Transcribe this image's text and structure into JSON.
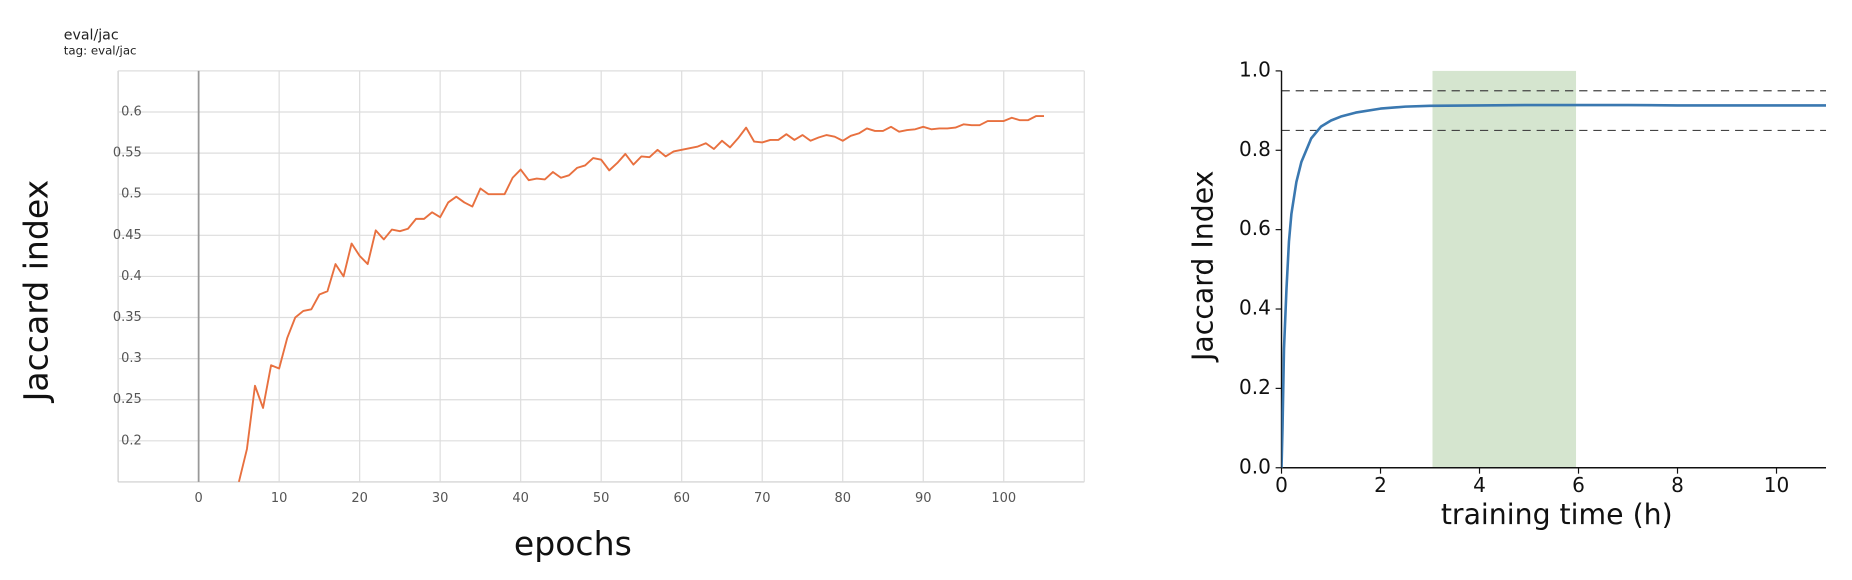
{
  "chart_data": [
    {
      "type": "line",
      "title": "eval/jac",
      "subtitle": "tag: eval/jac",
      "x_label": "epochs",
      "y_label": "Jaccard index",
      "x": [
        5,
        6,
        7,
        8,
        9,
        10,
        11,
        12,
        13,
        14,
        15,
        16,
        17,
        18,
        19,
        20,
        21,
        22,
        23,
        24,
        25,
        26,
        27,
        28,
        29,
        30,
        31,
        32,
        33,
        34,
        35,
        36,
        37,
        38,
        39,
        40,
        41,
        42,
        43,
        44,
        45,
        46,
        47,
        48,
        49,
        50,
        51,
        52,
        53,
        54,
        55,
        56,
        57,
        58,
        59,
        60,
        61,
        62,
        63,
        64,
        65,
        66,
        67,
        68,
        69,
        70,
        71,
        72,
        73,
        74,
        75,
        76,
        77,
        78,
        79,
        80,
        81,
        82,
        83,
        84,
        85,
        86,
        87,
        88,
        89,
        90,
        91,
        92,
        93,
        94,
        95,
        96,
        97,
        98,
        99,
        100,
        101,
        102,
        103,
        104,
        105
      ],
      "series": [
        {
          "name": "eval/jac",
          "color": "#e8703f",
          "values": [
            0.15,
            0.19,
            0.267,
            0.24,
            0.292,
            0.288,
            0.325,
            0.35,
            0.358,
            0.36,
            0.378,
            0.382,
            0.415,
            0.4,
            0.44,
            0.425,
            0.415,
            0.456,
            0.445,
            0.457,
            0.455,
            0.458,
            0.47,
            0.47,
            0.478,
            0.472,
            0.49,
            0.497,
            0.49,
            0.485,
            0.507,
            0.5,
            0.5,
            0.5,
            0.52,
            0.53,
            0.517,
            0.519,
            0.518,
            0.527,
            0.52,
            0.523,
            0.532,
            0.535,
            0.544,
            0.542,
            0.529,
            0.538,
            0.549,
            0.536,
            0.546,
            0.545,
            0.554,
            0.546,
            0.552,
            0.554,
            0.556,
            0.558,
            0.562,
            0.555,
            0.565,
            0.557,
            0.568,
            0.581,
            0.564,
            0.563,
            0.566,
            0.566,
            0.573,
            0.566,
            0.572,
            0.565,
            0.569,
            0.572,
            0.57,
            0.565,
            0.571,
            0.574,
            0.58,
            0.577,
            0.577,
            0.582,
            0.576,
            0.578,
            0.579,
            0.582,
            0.579,
            0.58,
            0.58,
            0.581,
            0.585,
            0.584,
            0.584,
            0.589,
            0.589,
            0.589,
            0.593,
            0.59,
            0.59,
            0.595,
            0.595
          ]
        }
      ],
      "xlim": [
        -10,
        110
      ],
      "xticks": [
        0,
        10,
        20,
        30,
        40,
        50,
        60,
        70,
        80,
        90,
        100
      ],
      "ylim": [
        0.15,
        0.65
      ],
      "yticks": [
        0.2,
        0.25,
        0.3,
        0.35,
        0.4,
        0.45,
        0.5,
        0.55,
        0.6
      ],
      "grid": true
    },
    {
      "type": "line",
      "x_label": "training time (h)",
      "y_label": "Jaccard Index",
      "x": [
        0,
        0.02,
        0.05,
        0.1,
        0.15,
        0.2,
        0.3,
        0.4,
        0.5,
        0.6,
        0.8,
        1.0,
        1.2,
        1.5,
        2,
        2.5,
        3,
        4,
        5,
        6,
        7,
        8,
        9,
        10,
        11
      ],
      "series": [
        {
          "name": "Jaccard Index",
          "color": "#3a78b0",
          "values": [
            0,
            0.1,
            0.3,
            0.45,
            0.57,
            0.64,
            0.72,
            0.77,
            0.8,
            0.83,
            0.86,
            0.875,
            0.885,
            0.895,
            0.905,
            0.91,
            0.912,
            0.913,
            0.914,
            0.914,
            0.914,
            0.913,
            0.913,
            0.913,
            0.913
          ]
        }
      ],
      "xlim": [
        0,
        11
      ],
      "xticks": [
        0,
        2,
        4,
        6,
        8,
        10
      ],
      "ylim": [
        0,
        1
      ],
      "yticks": [
        {
          "value": 0,
          "label": "0.0"
        },
        0.2,
        0.4,
        0.6,
        0.8,
        {
          "value": 1,
          "label": "1.0"
        }
      ],
      "grid": false,
      "hlines": [
        0.85,
        0.95
      ],
      "shaded_span": [
        3.05,
        5.95
      ],
      "shaded_color": "#d5e5cf"
    }
  ]
}
